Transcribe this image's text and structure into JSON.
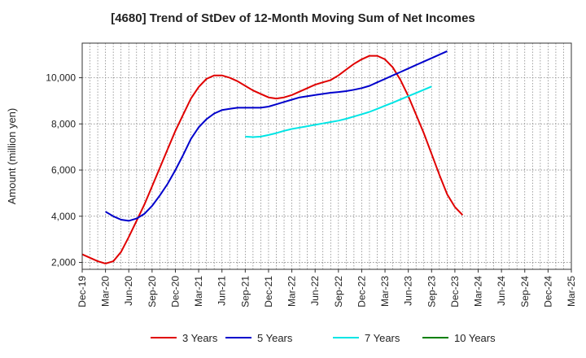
{
  "chart_data": {
    "type": "line",
    "title": "[4680]  Trend of StDev of 12-Month Moving Sum of Net Incomes",
    "xlabel": "",
    "ylabel": "Amount (million yen)",
    "ylim": [
      1700,
      11500
    ],
    "yticks": [
      2000,
      4000,
      6000,
      8000,
      10000
    ],
    "ytick_labels": [
      "2,000",
      "4,000",
      "6,000",
      "8,000",
      "10,000"
    ],
    "xtick_labels": [
      "Dec-19",
      "Mar-20",
      "Jun-20",
      "Sep-20",
      "Dec-20",
      "Mar-21",
      "Jun-21",
      "Sep-21",
      "Dec-21",
      "Mar-22",
      "Jun-22",
      "Sep-22",
      "Dec-22",
      "Mar-23",
      "Jun-23",
      "Sep-23",
      "Dec-23",
      "Mar-24",
      "Jun-24",
      "Sep-24",
      "Dec-24",
      "Mar-25"
    ],
    "grid": true,
    "legend_position": "bottom",
    "series": [
      {
        "name": "3 Years",
        "color": "#e00000",
        "start": 0,
        "values": [
          2350,
          2200,
          2050,
          1950,
          2050,
          2450,
          3100,
          3800,
          4500,
          5300,
          6100,
          6900,
          7700,
          8400,
          9100,
          9600,
          9950,
          10100,
          10100,
          10000,
          9850,
          9650,
          9450,
          9300,
          9150,
          9100,
          9150,
          9250,
          9400,
          9550,
          9700,
          9800,
          9900,
          10100,
          10350,
          10600,
          10800,
          10950,
          10950,
          10800,
          10450,
          9900,
          9200,
          8400,
          7600,
          6700,
          5800,
          4950,
          4400,
          4050
        ]
      },
      {
        "name": "5 Years",
        "color": "#0000cc",
        "start": 3,
        "values": [
          4200,
          4000,
          3850,
          3800,
          3900,
          4100,
          4450,
          4900,
          5400,
          6000,
          6650,
          7350,
          7850,
          8200,
          8450,
          8600,
          8650,
          8700,
          8700,
          8700,
          8700,
          8750,
          8850,
          8950,
          9050,
          9150,
          9200,
          9250,
          9300,
          9350,
          9380,
          9420,
          9480,
          9550,
          9650,
          9800,
          9950,
          10100,
          10250,
          10400,
          10550,
          10700,
          10850,
          11000,
          11150
        ]
      },
      {
        "name": "7 Years",
        "color": "#00e5e5",
        "start": 21,
        "values": [
          7450,
          7430,
          7450,
          7520,
          7600,
          7700,
          7780,
          7840,
          7900,
          7960,
          8020,
          8080,
          8140,
          8220,
          8320,
          8420,
          8520,
          8650,
          8790,
          8920,
          9060,
          9200,
          9340,
          9480,
          9620
        ]
      },
      {
        "name": "10 Years",
        "color": "#008000",
        "start": 0,
        "values": []
      }
    ]
  }
}
